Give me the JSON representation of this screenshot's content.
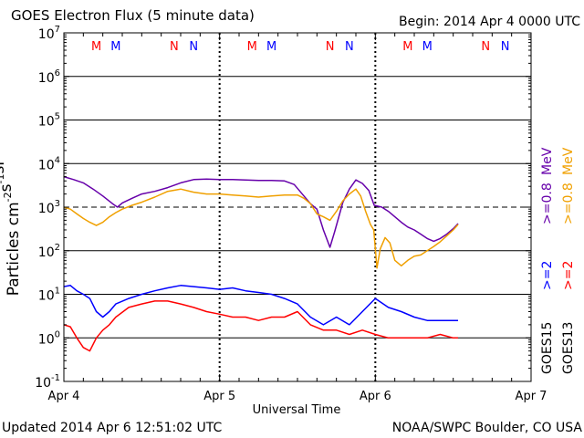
{
  "header": {
    "title": "GOES Electron Flux (5 minute data)",
    "begin": "Begin: 2014 Apr 4 0000 UTC"
  },
  "footer": {
    "updated": "Updated 2014 Apr  6 12:51:02 UTC",
    "credit": "NOAA/SWPC Boulder, CO USA"
  },
  "colors": {
    "red": "#ff0000",
    "blue": "#0000ff",
    "purple": "#6600aa",
    "orange": "#f0a000",
    "black": "#000000"
  },
  "chart_data": {
    "type": "line",
    "xlabel": "Universal Time",
    "ylabel": "Particles cm-2s-1sr-1",
    "yscale": "log",
    "ylim": [
      0.1,
      10000000
    ],
    "xlim": [
      "2014-04-04T00:00",
      "2014-04-07T00:00"
    ],
    "x_ticks": [
      "Apr 4",
      "Apr 5",
      "Apr 6",
      "Apr 7"
    ],
    "y_ticks": [
      {
        "base": "10",
        "exp": "7",
        "value": 10000000
      },
      {
        "base": "10",
        "exp": "6",
        "value": 1000000
      },
      {
        "base": "10",
        "exp": "5",
        "value": 100000
      },
      {
        "base": "10",
        "exp": "4",
        "value": 10000
      },
      {
        "base": "10",
        "exp": "3",
        "value": 1000
      },
      {
        "base": "10",
        "exp": "2",
        "value": 100
      },
      {
        "base": "10",
        "exp": "1",
        "value": 10
      },
      {
        "base": "10",
        "exp": "0",
        "value": 1
      },
      {
        "base": "10",
        "exp": "-1",
        "value": 0.1
      }
    ],
    "threshold": 1000,
    "grid": true,
    "markers": [
      {
        "label": "M",
        "color": "red",
        "x": "2014-04-04T05:00"
      },
      {
        "label": "M",
        "color": "blue",
        "x": "2014-04-04T08:00"
      },
      {
        "label": "N",
        "color": "red",
        "x": "2014-04-04T17:00"
      },
      {
        "label": "N",
        "color": "blue",
        "x": "2014-04-04T20:00"
      },
      {
        "label": "M",
        "color": "red",
        "x": "2014-04-05T05:00"
      },
      {
        "label": "M",
        "color": "blue",
        "x": "2014-04-05T08:00"
      },
      {
        "label": "N",
        "color": "red",
        "x": "2014-04-05T17:00"
      },
      {
        "label": "N",
        "color": "blue",
        "x": "2014-04-05T20:00"
      },
      {
        "label": "M",
        "color": "red",
        "x": "2014-04-06T05:00"
      },
      {
        "label": "M",
        "color": "blue",
        "x": "2014-04-06T08:00"
      },
      {
        "label": "N",
        "color": "red",
        "x": "2014-04-06T17:00"
      },
      {
        "label": "N",
        "color": "blue",
        "x": "2014-04-06T20:00"
      }
    ],
    "legend": {
      "goes15_label": "GOES15",
      "goes13_label": "GOES13",
      "goes15_2mev": ">=2",
      "goes15_08mev": ">=0.8",
      "goes13_2mev": ">=2",
      "goes13_08mev": ">=0.8",
      "unit": "MeV"
    },
    "series": [
      {
        "name": ">=0.8 MeV",
        "satellite": "GOES15",
        "color": "purple",
        "x": [
          "2014-04-04T00:00",
          "2014-04-04T01:30",
          "2014-04-04T03:00",
          "2014-04-04T04:30",
          "2014-04-04T06:00",
          "2014-04-04T07:30",
          "2014-04-04T08:15",
          "2014-04-04T09:00",
          "2014-04-04T10:30",
          "2014-04-04T12:00",
          "2014-04-04T14:00",
          "2014-04-04T16:00",
          "2014-04-04T18:00",
          "2014-04-04T20:00",
          "2014-04-04T22:00",
          "2014-04-05T00:00",
          "2014-04-05T02:00",
          "2014-04-05T04:00",
          "2014-04-05T06:00",
          "2014-04-05T08:00",
          "2014-04-05T10:00",
          "2014-04-05T11:30",
          "2014-04-05T13:00",
          "2014-04-05T14:00",
          "2014-04-05T15:00",
          "2014-04-05T16:00",
          "2014-04-05T17:00",
          "2014-04-05T17:45",
          "2014-04-05T19:00",
          "2014-04-05T20:00",
          "2014-04-05T21:00",
          "2014-04-05T22:00",
          "2014-04-05T23:00",
          "2014-04-05T23:50",
          "2014-04-06T01:00",
          "2014-04-06T02:00",
          "2014-04-06T03:00",
          "2014-04-06T04:00",
          "2014-04-06T05:00",
          "2014-04-06T06:00",
          "2014-04-06T07:00",
          "2014-04-06T08:00",
          "2014-04-06T09:00",
          "2014-04-06T10:00",
          "2014-04-06T11:00",
          "2014-04-06T12:00",
          "2014-04-06T12:45"
        ],
        "y": [
          5000,
          4300,
          3600,
          2600,
          1800,
          1200,
          1000,
          1250,
          1600,
          2000,
          2300,
          2800,
          3600,
          4300,
          4400,
          4300,
          4300,
          4200,
          4100,
          4100,
          4000,
          3300,
          1800,
          1200,
          900,
          300,
          120,
          280,
          1300,
          2600,
          4200,
          3500,
          2400,
          1100,
          1000,
          800,
          600,
          450,
          350,
          300,
          240,
          190,
          165,
          190,
          240,
          320,
          420
        ]
      },
      {
        "name": ">=0.8 MeV",
        "satellite": "GOES13",
        "color": "orange",
        "x": [
          "2014-04-04T00:00",
          "2014-04-04T01:00",
          "2014-04-04T02:00",
          "2014-04-04T03:00",
          "2014-04-04T04:00",
          "2014-04-04T05:00",
          "2014-04-04T06:00",
          "2014-04-04T07:00",
          "2014-04-04T08:00",
          "2014-04-04T09:00",
          "2014-04-04T10:30",
          "2014-04-04T12:00",
          "2014-04-04T14:00",
          "2014-04-04T16:00",
          "2014-04-04T18:00",
          "2014-04-04T20:00",
          "2014-04-04T22:00",
          "2014-04-05T00:00",
          "2014-04-05T02:00",
          "2014-04-05T04:00",
          "2014-04-05T06:00",
          "2014-04-05T08:00",
          "2014-04-05T10:00",
          "2014-04-05T12:00",
          "2014-04-05T13:00",
          "2014-04-05T14:00",
          "2014-04-05T15:00",
          "2014-04-05T16:00",
          "2014-04-05T17:00",
          "2014-04-05T18:00",
          "2014-04-05T19:00",
          "2014-04-05T20:00",
          "2014-04-05T21:00",
          "2014-04-05T21:45",
          "2014-04-05T22:30",
          "2014-04-05T23:15",
          "2014-04-05T23:45",
          "2014-04-06T00:15",
          "2014-04-06T00:45",
          "2014-04-06T01:30",
          "2014-04-06T02:15",
          "2014-04-06T03:00",
          "2014-04-06T04:00",
          "2014-04-06T05:00",
          "2014-04-06T06:00",
          "2014-04-06T07:00",
          "2014-04-06T08:00",
          "2014-04-06T09:00",
          "2014-04-06T10:00",
          "2014-04-06T11:00",
          "2014-04-06T12:00",
          "2014-04-06T12:45"
        ],
        "y": [
          1000,
          900,
          700,
          550,
          450,
          380,
          450,
          600,
          750,
          900,
          1100,
          1300,
          1700,
          2300,
          2600,
          2200,
          2000,
          2000,
          1900,
          1800,
          1700,
          1800,
          1900,
          1900,
          1600,
          1200,
          700,
          600,
          500,
          800,
          1400,
          2000,
          2600,
          1800,
          800,
          400,
          300,
          40,
          110,
          200,
          150,
          60,
          45,
          60,
          75,
          80,
          100,
          125,
          160,
          220,
          300,
          400
        ]
      },
      {
        "name": ">=2 MeV",
        "satellite": "GOES15",
        "color": "blue",
        "x": [
          "2014-04-04T00:00",
          "2014-04-04T01:00",
          "2014-04-04T02:00",
          "2014-04-04T03:00",
          "2014-04-04T04:00",
          "2014-04-04T05:00",
          "2014-04-04T06:00",
          "2014-04-04T07:00",
          "2014-04-04T08:00",
          "2014-04-04T10:00",
          "2014-04-04T12:00",
          "2014-04-04T14:00",
          "2014-04-04T16:00",
          "2014-04-04T18:00",
          "2014-04-04T20:00",
          "2014-04-04T22:00",
          "2014-04-05T00:00",
          "2014-04-05T02:00",
          "2014-04-05T04:00",
          "2014-04-05T06:00",
          "2014-04-05T08:00",
          "2014-04-05T10:00",
          "2014-04-05T12:00",
          "2014-04-05T14:00",
          "2014-04-05T16:00",
          "2014-04-05T18:00",
          "2014-04-05T20:00",
          "2014-04-05T22:00",
          "2014-04-06T00:00",
          "2014-04-06T02:00",
          "2014-04-06T04:00",
          "2014-04-06T06:00",
          "2014-04-06T08:00",
          "2014-04-06T10:00",
          "2014-04-06T12:00",
          "2014-04-06T12:45"
        ],
        "y": [
          15,
          16,
          12,
          10,
          8,
          4,
          3,
          4,
          6,
          8,
          10,
          12,
          14,
          16,
          15,
          14,
          13,
          14,
          12,
          11,
          10,
          8,
          6,
          3,
          2,
          3,
          2,
          4,
          8,
          5,
          4,
          3,
          2.5,
          2.5,
          2.5,
          2.5
        ]
      },
      {
        "name": ">=2 MeV",
        "satellite": "GOES13",
        "color": "red",
        "x": [
          "2014-04-04T00:00",
          "2014-04-04T01:00",
          "2014-04-04T02:00",
          "2014-04-04T03:00",
          "2014-04-04T04:00",
          "2014-04-04T05:00",
          "2014-04-04T06:00",
          "2014-04-04T07:00",
          "2014-04-04T08:00",
          "2014-04-04T10:00",
          "2014-04-04T12:00",
          "2014-04-04T14:00",
          "2014-04-04T16:00",
          "2014-04-04T18:00",
          "2014-04-04T20:00",
          "2014-04-04T22:00",
          "2014-04-05T00:00",
          "2014-04-05T02:00",
          "2014-04-05T04:00",
          "2014-04-05T06:00",
          "2014-04-05T08:00",
          "2014-04-05T10:00",
          "2014-04-05T12:00",
          "2014-04-05T14:00",
          "2014-04-05T16:00",
          "2014-04-05T18:00",
          "2014-04-05T20:00",
          "2014-04-05T22:00",
          "2014-04-06T00:00",
          "2014-04-06T02:00",
          "2014-04-06T04:00",
          "2014-04-06T06:00",
          "2014-04-06T08:00",
          "2014-04-06T10:00",
          "2014-04-06T12:00",
          "2014-04-06T12:45"
        ],
        "y": [
          2,
          1.8,
          1,
          0.6,
          0.5,
          1,
          1.5,
          2,
          3,
          5,
          6,
          7,
          7,
          6,
          5,
          4,
          3.5,
          3,
          3,
          2.5,
          3,
          3,
          4,
          2,
          1.5,
          1.5,
          1.2,
          1.5,
          1.2,
          1,
          1,
          1,
          1,
          1.2,
          1,
          1
        ]
      }
    ]
  }
}
